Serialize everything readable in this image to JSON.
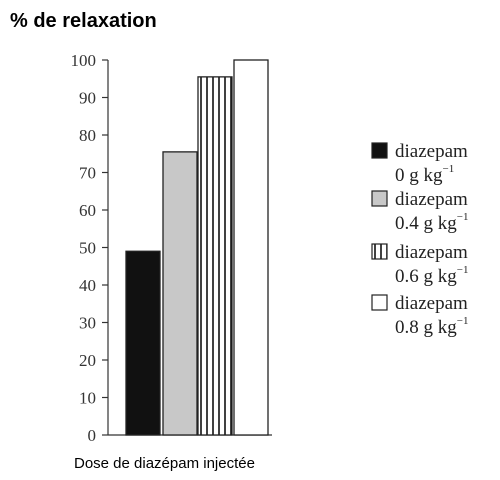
{
  "chart_data": {
    "type": "bar",
    "ylabel": "% de relaxation",
    "xlabel": "Dose de diazépam injectée",
    "ylim": [
      0,
      100
    ],
    "yticks": [
      0,
      10,
      20,
      30,
      40,
      50,
      60,
      70,
      80,
      90,
      100
    ],
    "grid": false,
    "legend_position": "right",
    "series": [
      {
        "name": "diazepam 0 g kg-1",
        "drug": "diazepam",
        "dose": "0 g kg",
        "exponent": "−1",
        "value": 49,
        "fill": "solid-black",
        "color": "#111111"
      },
      {
        "name": "diazepam 0.4 g kg-1",
        "drug": "diazepam",
        "dose": "0.4 g kg",
        "exponent": "−1",
        "value": 75.5,
        "fill": "solid-gray",
        "color": "#c8c8c8"
      },
      {
        "name": "diazepam 0.6 g kg-1",
        "drug": "diazepam",
        "dose": "0.6 g kg",
        "exponent": "−1",
        "value": 95.5,
        "fill": "vertical-stripes",
        "color": "#ffffff"
      },
      {
        "name": "diazepam 0.8 g kg-1",
        "drug": "diazepam",
        "dose": "0.8 g kg",
        "exponent": "−1",
        "value": 100,
        "fill": "white",
        "color": "#ffffff"
      }
    ]
  }
}
